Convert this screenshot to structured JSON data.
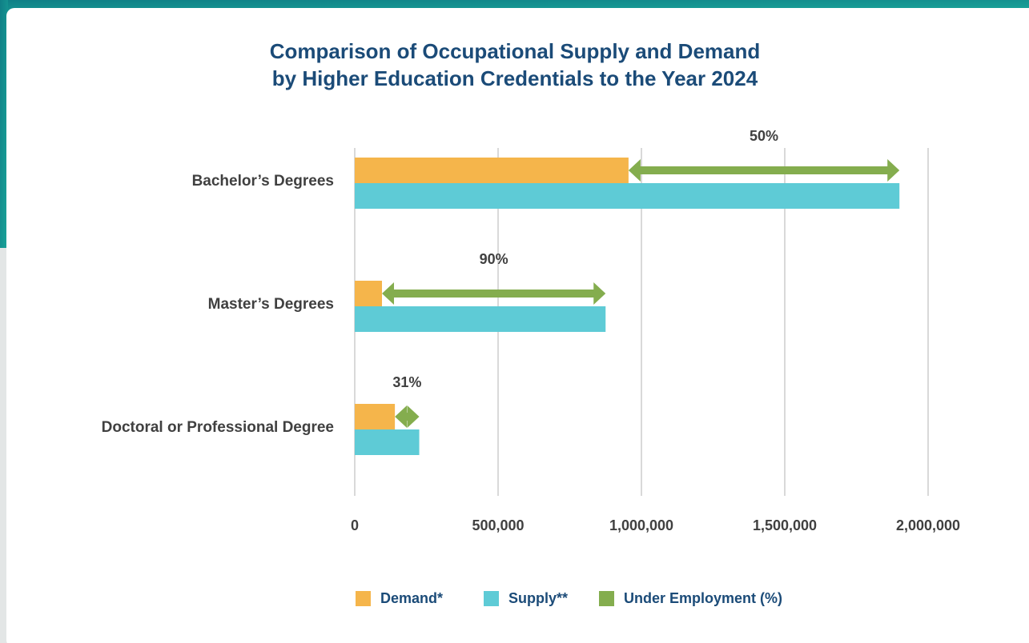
{
  "chart_data": {
    "type": "bar",
    "orientation": "horizontal",
    "title": [
      "Comparison of Occupational Supply and Demand",
      "by Higher Education Credentials to the Year 2024"
    ],
    "categories": [
      "Bachelor’s Degrees",
      "Master’s Degrees",
      "Doctoral or Professional Degree"
    ],
    "series": [
      {
        "name": "Demand*",
        "color": "#f5b54b",
        "values": [
          955000,
          95000,
          140000
        ]
      },
      {
        "name": "Supply**",
        "color": "#5ecbd6",
        "values": [
          1900000,
          875000,
          225000
        ]
      },
      {
        "name": "Under Employment (%)",
        "color": "#84ad4e",
        "values": [
          50,
          90,
          31
        ],
        "value_labels": [
          "50%",
          "90%",
          "31%"
        ]
      }
    ],
    "xlim": [
      0,
      2000000
    ],
    "xticks": [
      0,
      {
        "value": 500000,
        "label": "500,000"
      },
      {
        "value": 1000000,
        "label": "1,000,000"
      },
      {
        "value": 1500000,
        "label": "1,500,000"
      },
      {
        "value": 2000000,
        "label": "2,000,000"
      }
    ],
    "grid": true,
    "legend": "bottom"
  }
}
